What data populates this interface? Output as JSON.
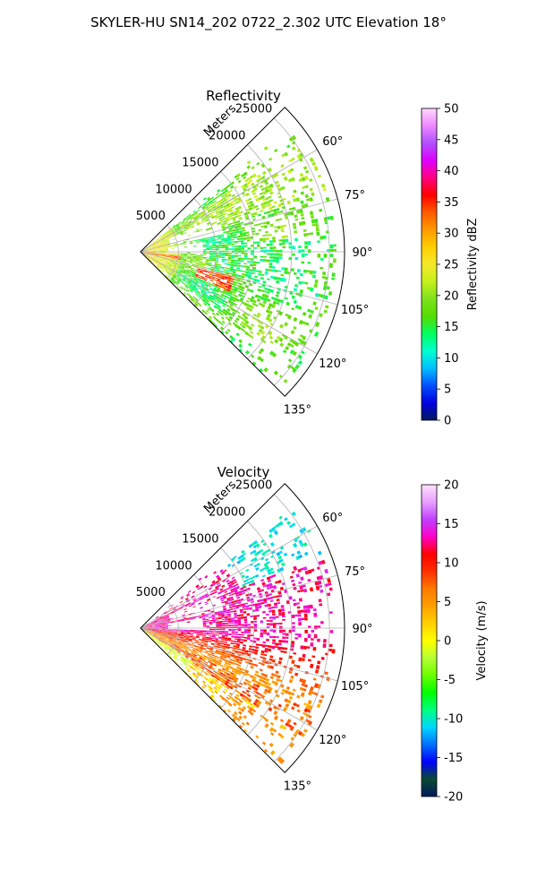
{
  "figure_title": "SKYLER-HU  SN14_202  0722_2.302 UTC Elevation 18°",
  "colors": {
    "reflectivity_stops": [
      "#001a5e",
      "#0000e0",
      "#0050ff",
      "#00bfff",
      "#00ffd0",
      "#00ff60",
      "#55dd00",
      "#7ee21a",
      "#c6f01a",
      "#f5e82a",
      "#ffcf00",
      "#ff9a00",
      "#ff5a00",
      "#ff0000",
      "#ff0080",
      "#e000ff",
      "#b050ff",
      "#ee88ff",
      "#ffd8ff"
    ],
    "velocity_stops": [
      "#001a5e",
      "#0a4a30",
      "#0000ff",
      "#0070ff",
      "#00d8ff",
      "#00ff80",
      "#00ff00",
      "#6cff00",
      "#b6ff33",
      "#ffff00",
      "#ffd000",
      "#ffa000",
      "#ff7a00",
      "#ff3000",
      "#ff0000",
      "#ff00c8",
      "#c040ff",
      "#e8a0ff",
      "#ffe0ff"
    ]
  },
  "chart_data": [
    {
      "type": "heatmap",
      "title": "Reflectivity",
      "range_label": "Meters",
      "range_ticks": [
        "5000",
        "10000",
        "15000",
        "20000",
        "25000"
      ],
      "azimuth_ticks": [
        "60°",
        "75°",
        "90°",
        "105°",
        "120°",
        "135°"
      ],
      "sector_deg": [
        45,
        135
      ],
      "max_range_m": 27000,
      "colorbar": {
        "label": "Reflectivity dBZ",
        "range": [
          0,
          50
        ],
        "ticks": [
          "0",
          "5",
          "10",
          "15",
          "20",
          "25",
          "30",
          "35",
          "40",
          "45",
          "50"
        ]
      },
      "field_summary": [
        {
          "azimuth_range_deg": [
            80,
            100
          ],
          "range_m": [
            0,
            5000
          ],
          "value_dbz": 27
        },
        {
          "azimuth_range_deg": [
            105,
            112
          ],
          "range_m": [
            9000,
            11000
          ],
          "value_dbz": 35
        },
        {
          "azimuth_range_deg": [
            55,
            70
          ],
          "range_m": [
            8000,
            25000
          ],
          "value_dbz": 20
        },
        {
          "azimuth_range_deg": [
            85,
            105
          ],
          "range_m": [
            8000,
            24000
          ],
          "value_dbz": 15
        },
        {
          "azimuth_range_deg": [
            110,
            130
          ],
          "range_m": [
            5000,
            20000
          ],
          "value_dbz": 20
        }
      ]
    },
    {
      "type": "heatmap",
      "title": "Velocity",
      "range_label": "Meters",
      "range_ticks": [
        "5000",
        "10000",
        "15000",
        "20000",
        "25000"
      ],
      "azimuth_ticks": [
        "60°",
        "75°",
        "90°",
        "105°",
        "120°",
        "135°"
      ],
      "sector_deg": [
        45,
        135
      ],
      "max_range_m": 27000,
      "colorbar": {
        "label": "Velocity (m/s)",
        "range": [
          -20,
          20
        ],
        "ticks": [
          "-20",
          "-15",
          "-10",
          "-5",
          "0",
          "5",
          "10",
          "15",
          "20"
        ]
      },
      "field_summary": [
        {
          "azimuth_range_deg": [
            55,
            70
          ],
          "range_m": [
            15000,
            25000
          ],
          "value_ms": -12
        },
        {
          "azimuth_range_deg": [
            70,
            95
          ],
          "range_m": [
            5000,
            22000
          ],
          "value_ms": 13
        },
        {
          "azimuth_range_deg": [
            95,
            120
          ],
          "range_m": [
            3000,
            20000
          ],
          "value_ms": 9
        },
        {
          "azimuth_range_deg": [
            120,
            135
          ],
          "range_m": [
            2000,
            20000
          ],
          "value_ms": 3
        }
      ]
    }
  ]
}
